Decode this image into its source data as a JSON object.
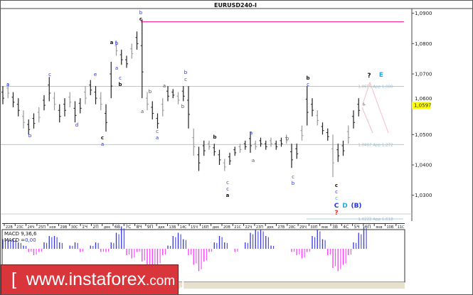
{
  "window": {
    "title": "EURUSD240-I"
  },
  "chart_data": {
    "type": "bar",
    "symbol": "EURUSD240-I",
    "ylim": [
      1.0222,
      1.0915
    ],
    "yticks": [
      "1,0900",
      "1,0800",
      "1,0700",
      "1,0600",
      "1,0500",
      "1,0400",
      "1,0300"
    ],
    "ytick_values": [
      1.09,
      1.08,
      1.07,
      1.06,
      1.05,
      1.04,
      1.03
    ],
    "current_price": {
      "value": 1.0597,
      "label": "1,0597",
      "color": "#ffff00"
    },
    "xticks": [
      "22В",
      "23С",
      "24Ч",
      "25П",
      "ноя",
      "29В",
      "30С",
      "1Ч",
      "2П",
      "дек",
      "6В",
      "7С",
      "8Ч",
      "9П",
      "дек",
      "13В",
      "14С",
      "15Ч",
      "16П",
      "дек",
      "20В",
      "21С",
      "22Ч",
      "23П",
      "дек",
      "27В",
      "28С",
      "29Ч",
      "30П",
      "янв",
      "3В",
      "4С",
      "5Ч",
      "6П",
      "янв",
      "10В",
      "11С"
    ],
    "bars_low_high": [
      [
        1.06,
        1.066
      ],
      [
        1.062,
        1.067
      ],
      [
        1.059,
        1.064
      ],
      [
        1.056,
        1.062
      ],
      [
        1.052,
        1.058
      ],
      [
        1.05,
        1.055
      ],
      [
        1.052,
        1.057
      ],
      [
        1.054,
        1.059
      ],
      [
        1.058,
        1.063
      ],
      [
        1.061,
        1.069
      ],
      [
        1.058,
        1.064
      ],
      [
        1.054,
        1.06
      ],
      [
        1.056,
        1.062
      ],
      [
        1.059,
        1.064
      ],
      [
        1.054,
        1.061
      ],
      [
        1.057,
        1.062
      ],
      [
        1.06,
        1.066
      ],
      [
        1.063,
        1.068
      ],
      [
        1.06,
        1.066
      ],
      [
        1.058,
        1.064
      ],
      [
        1.051,
        1.06
      ],
      [
        1.062,
        1.074
      ],
      [
        1.076,
        1.081
      ],
      [
        1.073,
        1.078
      ],
      [
        1.072,
        1.076
      ],
      [
        1.075,
        1.08
      ],
      [
        1.078,
        1.084
      ],
      [
        1.062,
        1.088
      ],
      [
        1.058,
        1.064
      ],
      [
        1.055,
        1.061
      ],
      [
        1.052,
        1.057
      ],
      [
        1.056,
        1.062
      ],
      [
        1.061,
        1.066
      ],
      [
        1.062,
        1.065
      ],
      [
        1.06,
        1.064
      ],
      [
        1.061,
        1.066
      ],
      [
        1.052,
        1.066
      ],
      [
        1.043,
        1.052
      ],
      [
        1.038,
        1.046
      ],
      [
        1.043,
        1.048
      ],
      [
        1.045,
        1.048
      ],
      [
        1.043,
        1.047
      ],
      [
        1.04,
        1.045
      ],
      [
        1.038,
        1.042
      ],
      [
        1.04,
        1.044
      ],
      [
        1.043,
        1.046
      ],
      [
        1.044,
        1.047
      ],
      [
        1.045,
        1.048
      ],
      [
        1.044,
        1.051
      ],
      [
        1.045,
        1.048
      ],
      [
        1.046,
        1.049
      ],
      [
        1.045,
        1.048
      ],
      [
        1.046,
        1.049
      ],
      [
        1.045,
        1.048
      ],
      [
        1.046,
        1.049
      ],
      [
        1.047,
        1.05
      ],
      [
        1.039,
        1.047
      ],
      [
        1.042,
        1.047
      ],
      [
        1.048,
        1.053
      ],
      [
        1.053,
        1.066
      ],
      [
        1.056,
        1.062
      ],
      [
        1.053,
        1.058
      ],
      [
        1.05,
        1.054
      ],
      [
        1.048,
        1.052
      ],
      [
        1.036,
        1.05
      ],
      [
        1.041,
        1.047
      ],
      [
        1.043,
        1.048
      ],
      [
        1.047,
        1.053
      ],
      [
        1.052,
        1.058
      ],
      [
        1.056,
        1.062
      ],
      [
        1.0595,
        1.0605
      ]
    ],
    "levels": [
      {
        "value": 1.0872,
        "color": "#ff3399",
        "label": ""
      },
      {
        "value": 1.0659,
        "color": "#aaccdd",
        "label": "1,0659 App 1,000"
      },
      {
        "value": 1.0467,
        "color": "#aaccdd",
        "label": "1,0467 App 1,272"
      },
      {
        "value": 1.0222,
        "color": "#aaccdd",
        "label": "1,0222 App 1,618"
      }
    ],
    "wave_labels": [
      {
        "text": "a",
        "color": "#2233dd"
      },
      {
        "text": "b",
        "color": "#2233dd"
      },
      {
        "text": "c",
        "color": "#2233dd"
      },
      {
        "text": "d",
        "color": "#2233dd"
      },
      {
        "text": "e",
        "color": "#2233dd"
      },
      {
        "text": "c",
        "color": "#111111"
      },
      {
        "text": "a",
        "color": "#2233dd"
      },
      {
        "text": "a",
        "color": "#111111"
      },
      {
        "text": "b",
        "color": "#2233dd"
      },
      {
        "text": "a",
        "color": "#2233dd"
      },
      {
        "text": "c",
        "color": "#2233dd"
      },
      {
        "text": "b",
        "color": "#111111"
      },
      {
        "text": "b",
        "color": "#2233dd"
      },
      {
        "text": "c",
        "color": "#111111"
      },
      {
        "text": "b",
        "color": "#555555"
      },
      {
        "text": "a",
        "color": "#555555"
      },
      {
        "text": "c",
        "color": "#555555"
      },
      {
        "text": "a",
        "color": "#2233dd"
      },
      {
        "text": "a",
        "color": "#555555"
      },
      {
        "text": "b",
        "color": "#2233dd"
      },
      {
        "text": "c",
        "color": "#555555"
      },
      {
        "text": "b",
        "color": "#555555"
      },
      {
        "text": "b",
        "color": "#111111"
      },
      {
        "text": "a",
        "color": "#2233dd"
      },
      {
        "text": "a",
        "color": "#555555"
      },
      {
        "text": "c",
        "color": "#555555"
      },
      {
        "text": "c",
        "color": "#2233dd"
      },
      {
        "text": "a",
        "color": "#111111"
      },
      {
        "text": "b",
        "color": "#555555"
      },
      {
        "text": "c",
        "color": "#555555"
      },
      {
        "text": "b",
        "color": "#2233dd"
      },
      {
        "text": "b",
        "color": "#111111"
      },
      {
        "text": "c",
        "color": "#2233dd"
      },
      {
        "text": "?",
        "color": "#111111"
      },
      {
        "text": "E",
        "color": "#22aadd"
      },
      {
        "text": "c",
        "color": "#111111"
      },
      {
        "text": "c",
        "color": "#2233dd"
      },
      {
        "text": "c",
        "color": "#22aadd"
      },
      {
        "text": "C",
        "color": "#2233dd"
      },
      {
        "text": "D",
        "color": "#22aadd"
      },
      {
        "text": "(B)",
        "color": "#2233dd"
      },
      {
        "text": "?",
        "color": "#ff2222"
      }
    ],
    "macd": {
      "label": "MACD 9,36,6",
      "value_label": "MACD =",
      "value": "0,00",
      "positive_color": "#3333dd",
      "negative_color": "#ff33ff",
      "histogram": [
        3,
        3,
        3,
        2,
        1,
        -1,
        -2,
        -1,
        2,
        4,
        4,
        2,
        0,
        1,
        2,
        -1,
        0,
        1,
        2,
        -1,
        -1,
        2,
        5,
        7,
        -2,
        -3,
        -1,
        -4,
        -6,
        -6,
        -5,
        -2,
        1,
        4,
        5,
        3,
        -2,
        -5,
        -7,
        -4,
        -1,
        2,
        4,
        2,
        0,
        -1,
        0,
        2,
        5,
        6,
        6,
        4,
        1,
        0,
        0,
        0,
        -1,
        -2,
        -3,
        -1,
        4,
        6,
        3,
        -2,
        -6,
        -7,
        -5,
        -2,
        2,
        5,
        7
      ]
    }
  },
  "branding": {
    "bracket_open": "[",
    "site": "www.instaforex",
    "tld": ".com",
    "bracket_close": "]"
  }
}
